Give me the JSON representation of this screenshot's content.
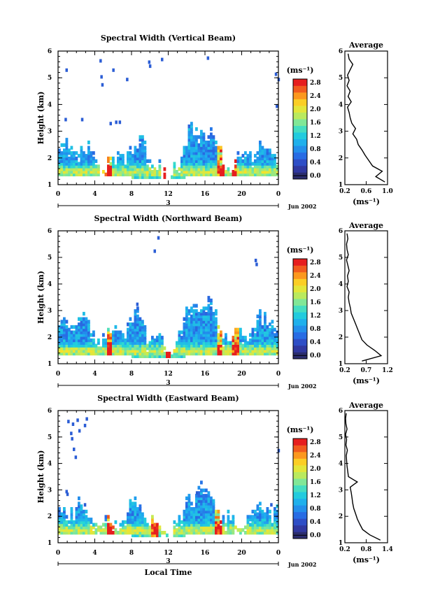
{
  "figure": {
    "ylabel": "Height (km)",
    "xlabel": "Local Time",
    "colorbar_unit": "(ms⁻¹)",
    "average_unit": "(ms⁻¹)",
    "average_title": "Average",
    "day_label": "3",
    "month_label": "Jun 2002"
  },
  "chart_data": [
    {
      "type": "heatmap",
      "title": "Spectral Width (Vertical Beam)",
      "xlabel": "",
      "ylabel": "Height (km)",
      "xlim": [
        0,
        24
      ],
      "ylim": [
        1,
        6
      ],
      "xticks": [
        "0",
        "4",
        "8",
        "12",
        "16",
        "20",
        "0"
      ],
      "yticks": [
        "1",
        "2",
        "3",
        "4",
        "5",
        "6"
      ],
      "colorbar": {
        "label": "(ms⁻¹)",
        "ticks": [
          "0.0",
          "0.4",
          "0.8",
          "1.2",
          "1.6",
          "2.0",
          "2.4",
          "2.8"
        ],
        "range": [
          0,
          3.0
        ]
      },
      "base_top_km": 2.1,
      "peak_top_km": 2.8,
      "hotspots_hours": [
        5.5,
        11.6,
        17.8,
        19.2
      ],
      "sparse_cells": [
        [
          0.8,
          5.35
        ],
        [
          4.5,
          5.7
        ],
        [
          4.6,
          5.1
        ],
        [
          4.7,
          4.8
        ],
        [
          5.9,
          5.35
        ],
        [
          7.4,
          5.0
        ],
        [
          9.8,
          5.65
        ],
        [
          9.9,
          5.5
        ],
        [
          11.2,
          5.75
        ],
        [
          16.2,
          5.8
        ],
        [
          23.6,
          5.2
        ],
        [
          23.9,
          5.0
        ],
        [
          23.7,
          4.0
        ],
        [
          0.7,
          3.5
        ],
        [
          2.5,
          3.5
        ],
        [
          5.6,
          3.35
        ],
        [
          6.2,
          3.4
        ],
        [
          6.6,
          3.4
        ]
      ],
      "average": {
        "title": "Average",
        "xlabel": "(ms⁻¹)",
        "xlim": [
          0.2,
          1.0
        ],
        "xticks": [
          "0.2",
          "0.6",
          "1.0"
        ],
        "heights": [
          1.1,
          1.3,
          1.5,
          1.7,
          1.9,
          2.1,
          2.3,
          2.5,
          2.7,
          2.9,
          3.1,
          3.3,
          3.5,
          3.7,
          3.9,
          4.1,
          4.3,
          4.5,
          4.7,
          4.9,
          5.1,
          5.3,
          5.5,
          5.7,
          5.9
        ],
        "values": [
          0.95,
          0.78,
          0.9,
          0.72,
          0.65,
          0.58,
          0.52,
          0.45,
          0.42,
          0.35,
          0.4,
          0.33,
          0.3,
          0.28,
          0.25,
          0.32,
          0.26,
          0.3,
          0.24,
          0.28,
          0.25,
          0.3,
          0.35,
          0.28,
          0.26
        ]
      }
    },
    {
      "type": "heatmap",
      "title": "Spectral Width (Northward Beam)",
      "xlabel": "",
      "ylabel": "Height (km)",
      "xlim": [
        0,
        24
      ],
      "ylim": [
        1,
        6
      ],
      "xticks": [
        "0",
        "4",
        "8",
        "12",
        "16",
        "20",
        "0"
      ],
      "yticks": [
        "1",
        "2",
        "3",
        "4",
        "5",
        "6"
      ],
      "colorbar": {
        "label": "(ms⁻¹)",
        "ticks": [
          "0.0",
          "0.4",
          "0.8",
          "1.2",
          "1.6",
          "2.0",
          "2.4",
          "2.8"
        ],
        "range": [
          0,
          3.0
        ]
      },
      "base_top_km": 2.3,
      "peak_top_km": 3.0,
      "hotspots_hours": [
        5.6,
        12.0,
        17.6,
        19.4
      ],
      "sparse_cells": [
        [
          10.8,
          5.8
        ],
        [
          10.4,
          5.3
        ],
        [
          21.4,
          4.95
        ],
        [
          21.5,
          4.8
        ],
        [
          16.5,
          3.15
        ],
        [
          8.5,
          3.3
        ]
      ],
      "average": {
        "title": "Average",
        "xlabel": "(ms⁻¹)",
        "xlim": [
          0.2,
          1.2
        ],
        "xticks": [
          "0.2",
          "0.7",
          "1.2"
        ],
        "heights": [
          1.1,
          1.3,
          1.5,
          1.7,
          1.9,
          2.1,
          2.3,
          2.5,
          2.7,
          2.9,
          3.1,
          3.3,
          3.5,
          3.7,
          3.9,
          4.1,
          4.3,
          4.5,
          4.7,
          4.9,
          5.1,
          5.3,
          5.5,
          5.7,
          5.9
        ],
        "values": [
          0.6,
          1.05,
          0.9,
          0.72,
          0.6,
          0.55,
          0.5,
          0.45,
          0.4,
          0.35,
          0.33,
          0.3,
          0.28,
          0.3,
          0.25,
          0.28,
          0.26,
          0.3,
          0.27,
          0.24,
          0.28,
          0.25,
          0.24,
          0.27,
          0.25
        ]
      }
    },
    {
      "type": "heatmap",
      "title": "Spectral Width (Eastward Beam)",
      "xlabel": "Local Time",
      "ylabel": "Height (km)",
      "xlim": [
        0,
        24
      ],
      "ylim": [
        1,
        6
      ],
      "xticks": [
        "0",
        "4",
        "8",
        "12",
        "16",
        "20",
        "0"
      ],
      "yticks": [
        "1",
        "2",
        "3",
        "4",
        "5",
        "6"
      ],
      "colorbar": {
        "label": "(ms⁻¹)",
        "ticks": [
          "0.0",
          "0.4",
          "0.8",
          "1.2",
          "1.6",
          "2.0",
          "2.4",
          "2.8"
        ],
        "range": [
          0,
          3.0
        ]
      },
      "base_top_km": 2.0,
      "peak_top_km": 2.7,
      "hotspots_hours": [
        5.8,
        10.6,
        17.5
      ],
      "sparse_cells": [
        [
          1.0,
          5.65
        ],
        [
          1.5,
          5.55
        ],
        [
          2.0,
          5.7
        ],
        [
          3.0,
          5.75
        ],
        [
          2.8,
          5.5
        ],
        [
          1.3,
          5.2
        ],
        [
          1.4,
          5.0
        ],
        [
          1.6,
          4.6
        ],
        [
          1.8,
          4.3
        ],
        [
          2.2,
          5.3
        ],
        [
          23.9,
          4.55
        ],
        [
          0.8,
          3.0
        ],
        [
          0.9,
          2.9
        ],
        [
          2.8,
          2.5
        ],
        [
          15.0,
          2.95
        ],
        [
          23.1,
          2.5
        ]
      ],
      "average": {
        "title": "Average",
        "xlabel": "(ms⁻¹)",
        "xlim": [
          0.2,
          1.4
        ],
        "xticks": [
          "0.2",
          "0.8",
          "1.4"
        ],
        "heights": [
          1.1,
          1.3,
          1.5,
          1.7,
          1.9,
          2.1,
          2.3,
          2.5,
          2.7,
          2.9,
          3.1,
          3.3,
          3.5,
          3.7,
          3.9,
          4.1,
          4.3,
          4.5,
          4.7,
          4.9,
          5.1,
          5.3,
          5.5,
          5.7,
          5.9
        ],
        "values": [
          1.2,
          0.9,
          0.7,
          0.62,
          0.55,
          0.5,
          0.45,
          0.42,
          0.4,
          0.38,
          0.35,
          0.55,
          0.3,
          0.28,
          0.26,
          0.25,
          0.24,
          0.27,
          0.23,
          0.25,
          0.22,
          0.26,
          0.23,
          0.22,
          0.24
        ]
      }
    }
  ]
}
